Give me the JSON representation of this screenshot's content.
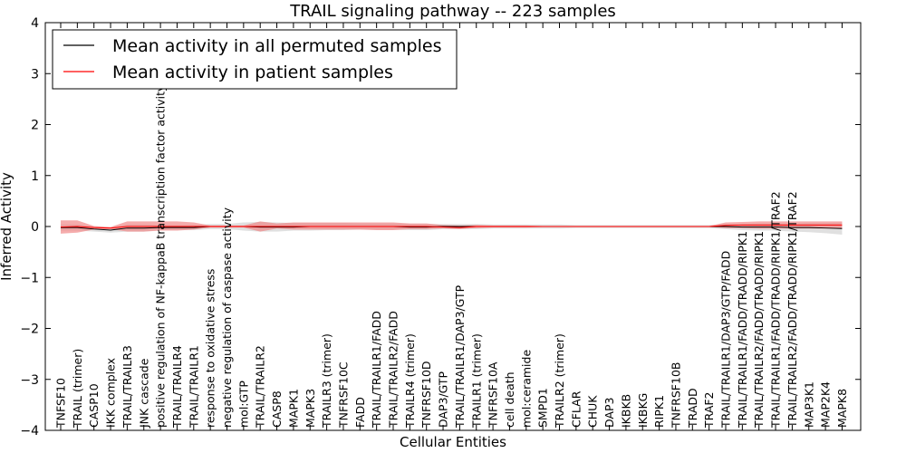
{
  "chart_data": {
    "type": "line",
    "title": "TRAIL signaling pathway -- 223 samples",
    "xlabel": "Cellular Entities",
    "ylabel": "Inferred Activity",
    "ylim": [
      -4,
      4
    ],
    "yticks": [
      -4,
      -3,
      -2,
      -1,
      0,
      1,
      2,
      3,
      4
    ],
    "ytick_labels": [
      "−4",
      "−3",
      "−2",
      "−1",
      "0",
      "1",
      "2",
      "3",
      "4"
    ],
    "legend_position": "top-left",
    "categories": [
      "TNFSF10",
      "TRAIL (trimer)",
      "CASP10",
      "IKK complex",
      "TRAIL/TRAILR3",
      "JNK cascade",
      "positive regulation of NF-kappaB transcription factor activity",
      "TRAIL/TRAILR4",
      "TRAIL/TRAILR1",
      "response to oxidative stress",
      "negative regulation of caspase activity",
      "mol:GTP",
      "TRAIL/TRAILR2",
      "CASP8",
      "MAPK1",
      "MAPK3",
      "TRAILR3 (trimer)",
      "TNFRSF10C",
      "FADD",
      "TRAIL/TRAILR1/FADD",
      "TRAIL/TRAILR2/FADD",
      "TRAILR4 (trimer)",
      "TNFRSF10D",
      "DAP3/GTP",
      "TRAIL/TRAILR1/DAP3/GTP",
      "TRAILR1 (trimer)",
      "TNFRSF10A",
      "cell death",
      "mol:ceramide",
      "SMPD1",
      "TRAILR2 (trimer)",
      "CFLAR",
      "CHUK",
      "DAP3",
      "IKBKB",
      "IKBKG",
      "RIPK1",
      "TNFRSF10B",
      "TRADD",
      "TRAF2",
      "TRAIL/TRAILR1/DAP3/GTP/FADD",
      "TRAIL/TRAILR1/FADD/TRADD/RIPK1",
      "TRAIL/TRAILR2/FADD/TRADD/RIPK1",
      "TRAIL/TRAILR1/FADD/TRADD/RIPK1/TRAF2",
      "TRAIL/TRAILR2/FADD/TRADD/RIPK1/TRAF2",
      "MAP3K1",
      "MAP2K4",
      "MAPK8"
    ],
    "series": [
      {
        "name": "Mean activity in all permuted samples",
        "color": "#000000",
        "values": [
          -0.02,
          -0.02,
          -0.05,
          -0.07,
          -0.03,
          -0.03,
          -0.02,
          -0.02,
          -0.02,
          0.0,
          0.0,
          0.0,
          -0.01,
          -0.01,
          -0.01,
          0.0,
          0.0,
          0.0,
          0.0,
          0.0,
          0.0,
          -0.01,
          -0.01,
          0.0,
          0.0,
          0.0,
          0.0,
          0.0,
          0.0,
          0.0,
          0.0,
          0.0,
          0.0,
          0.0,
          0.0,
          0.0,
          0.0,
          0.0,
          0.0,
          0.0,
          0.0,
          -0.01,
          -0.01,
          -0.01,
          -0.02,
          -0.02,
          -0.03,
          -0.04
        ],
        "band_low": [
          -0.08,
          -0.08,
          -0.1,
          -0.12,
          -0.1,
          -0.1,
          -0.07,
          -0.07,
          -0.07,
          -0.05,
          -0.05,
          -0.08,
          -0.1,
          -0.1,
          -0.08,
          -0.08,
          -0.07,
          -0.07,
          -0.06,
          -0.06,
          -0.06,
          -0.07,
          -0.07,
          -0.05,
          -0.05,
          -0.05,
          -0.04,
          -0.04,
          -0.04,
          -0.04,
          -0.04,
          -0.03,
          -0.03,
          -0.03,
          -0.03,
          -0.03,
          -0.03,
          -0.03,
          -0.03,
          -0.03,
          -0.05,
          -0.07,
          -0.08,
          -0.08,
          -0.1,
          -0.11,
          -0.13,
          -0.16
        ],
        "band_high": [
          0.04,
          0.04,
          0.0,
          -0.02,
          0.04,
          0.04,
          0.03,
          0.03,
          0.03,
          0.05,
          0.05,
          0.08,
          0.09,
          0.08,
          0.07,
          0.07,
          0.07,
          0.07,
          0.06,
          0.06,
          0.06,
          0.05,
          0.05,
          0.05,
          0.05,
          0.05,
          0.04,
          0.04,
          0.04,
          0.04,
          0.04,
          0.03,
          0.03,
          0.03,
          0.03,
          0.03,
          0.03,
          0.03,
          0.03,
          0.03,
          0.05,
          0.05,
          0.06,
          0.06,
          0.06,
          0.07,
          0.07,
          0.08
        ],
        "band_color": "#d8d8d8"
      },
      {
        "name": "Mean activity in patient samples",
        "color": "#ff0000",
        "values": [
          -0.01,
          0.0,
          -0.02,
          -0.03,
          0.0,
          0.0,
          0.0,
          0.0,
          0.0,
          0.0,
          0.0,
          0.0,
          0.0,
          0.0,
          0.0,
          0.0,
          0.0,
          0.0,
          0.0,
          0.0,
          0.0,
          0.0,
          0.0,
          -0.01,
          -0.02,
          0.0,
          0.0,
          0.0,
          0.0,
          0.0,
          0.0,
          0.0,
          0.0,
          0.0,
          0.0,
          0.0,
          0.0,
          0.0,
          0.0,
          0.0,
          0.02,
          0.03,
          0.03,
          0.03,
          0.03,
          0.03,
          0.03,
          0.03
        ],
        "band_low": [
          -0.14,
          -0.12,
          -0.06,
          -0.05,
          -0.1,
          -0.1,
          -0.08,
          -0.08,
          -0.06,
          -0.02,
          -0.02,
          -0.02,
          -0.1,
          -0.04,
          -0.06,
          -0.06,
          -0.06,
          -0.06,
          -0.06,
          -0.07,
          -0.07,
          -0.05,
          -0.05,
          -0.04,
          -0.05,
          -0.03,
          -0.02,
          -0.02,
          -0.02,
          -0.01,
          -0.01,
          -0.01,
          -0.01,
          -0.01,
          -0.01,
          -0.01,
          -0.01,
          -0.01,
          -0.01,
          -0.01,
          -0.03,
          -0.03,
          -0.04,
          -0.04,
          -0.04,
          -0.04,
          -0.04,
          -0.04
        ],
        "band_high": [
          0.12,
          0.12,
          0.01,
          -0.01,
          0.1,
          0.1,
          0.1,
          0.1,
          0.08,
          0.02,
          0.02,
          0.02,
          0.1,
          0.06,
          0.08,
          0.08,
          0.08,
          0.08,
          0.08,
          0.08,
          0.08,
          0.06,
          0.06,
          0.03,
          0.02,
          0.03,
          0.02,
          0.02,
          0.02,
          0.01,
          0.01,
          0.01,
          0.01,
          0.01,
          0.01,
          0.01,
          0.01,
          0.01,
          0.01,
          0.01,
          0.08,
          0.09,
          0.1,
          0.1,
          0.1,
          0.1,
          0.1,
          0.1
        ],
        "band_color": "#f08080"
      }
    ]
  }
}
